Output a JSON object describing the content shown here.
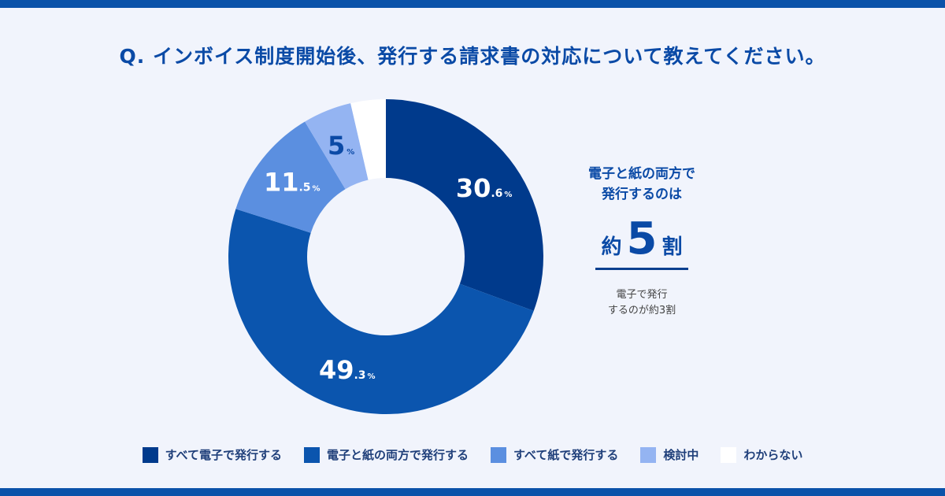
{
  "title": "Q. インボイス制度開始後、発行する請求書の対応について教えてください。",
  "chart_data": {
    "type": "pie",
    "title": "Q. インボイス制度開始後、発行する請求書の対応について教えてください。",
    "categories": [
      "すべて電子で発行する",
      "電子と紙の両方で発行する",
      "すべて紙で発行する",
      "検討中",
      "わからない"
    ],
    "values": [
      30.6,
      49.3,
      11.5,
      5,
      3.6
    ],
    "colors": [
      "#003a8c",
      "#0b55ae",
      "#5b8fe0",
      "#94b4f2",
      "#ffffff"
    ],
    "labels": [
      {
        "main": "30",
        "dec": ".6",
        "unit": "%"
      },
      {
        "main": "49",
        "dec": ".3",
        "unit": "%"
      },
      {
        "main": "11",
        "dec": ".5",
        "unit": "%"
      },
      {
        "main": "5",
        "dec": "",
        "unit": "%"
      },
      null
    ],
    "label_colors": [
      "#ffffff",
      "#ffffff",
      "#ffffff",
      "#0b4aa6",
      null
    ],
    "legend_placement": "bottom",
    "donut": true
  },
  "callout": {
    "line1": "電子と紙の両方で",
    "line2": "発行するのは",
    "prefix": "約",
    "number": "5",
    "suffix": "割",
    "note_line1": "電子で発行",
    "note_line2": "するのが約3割"
  }
}
